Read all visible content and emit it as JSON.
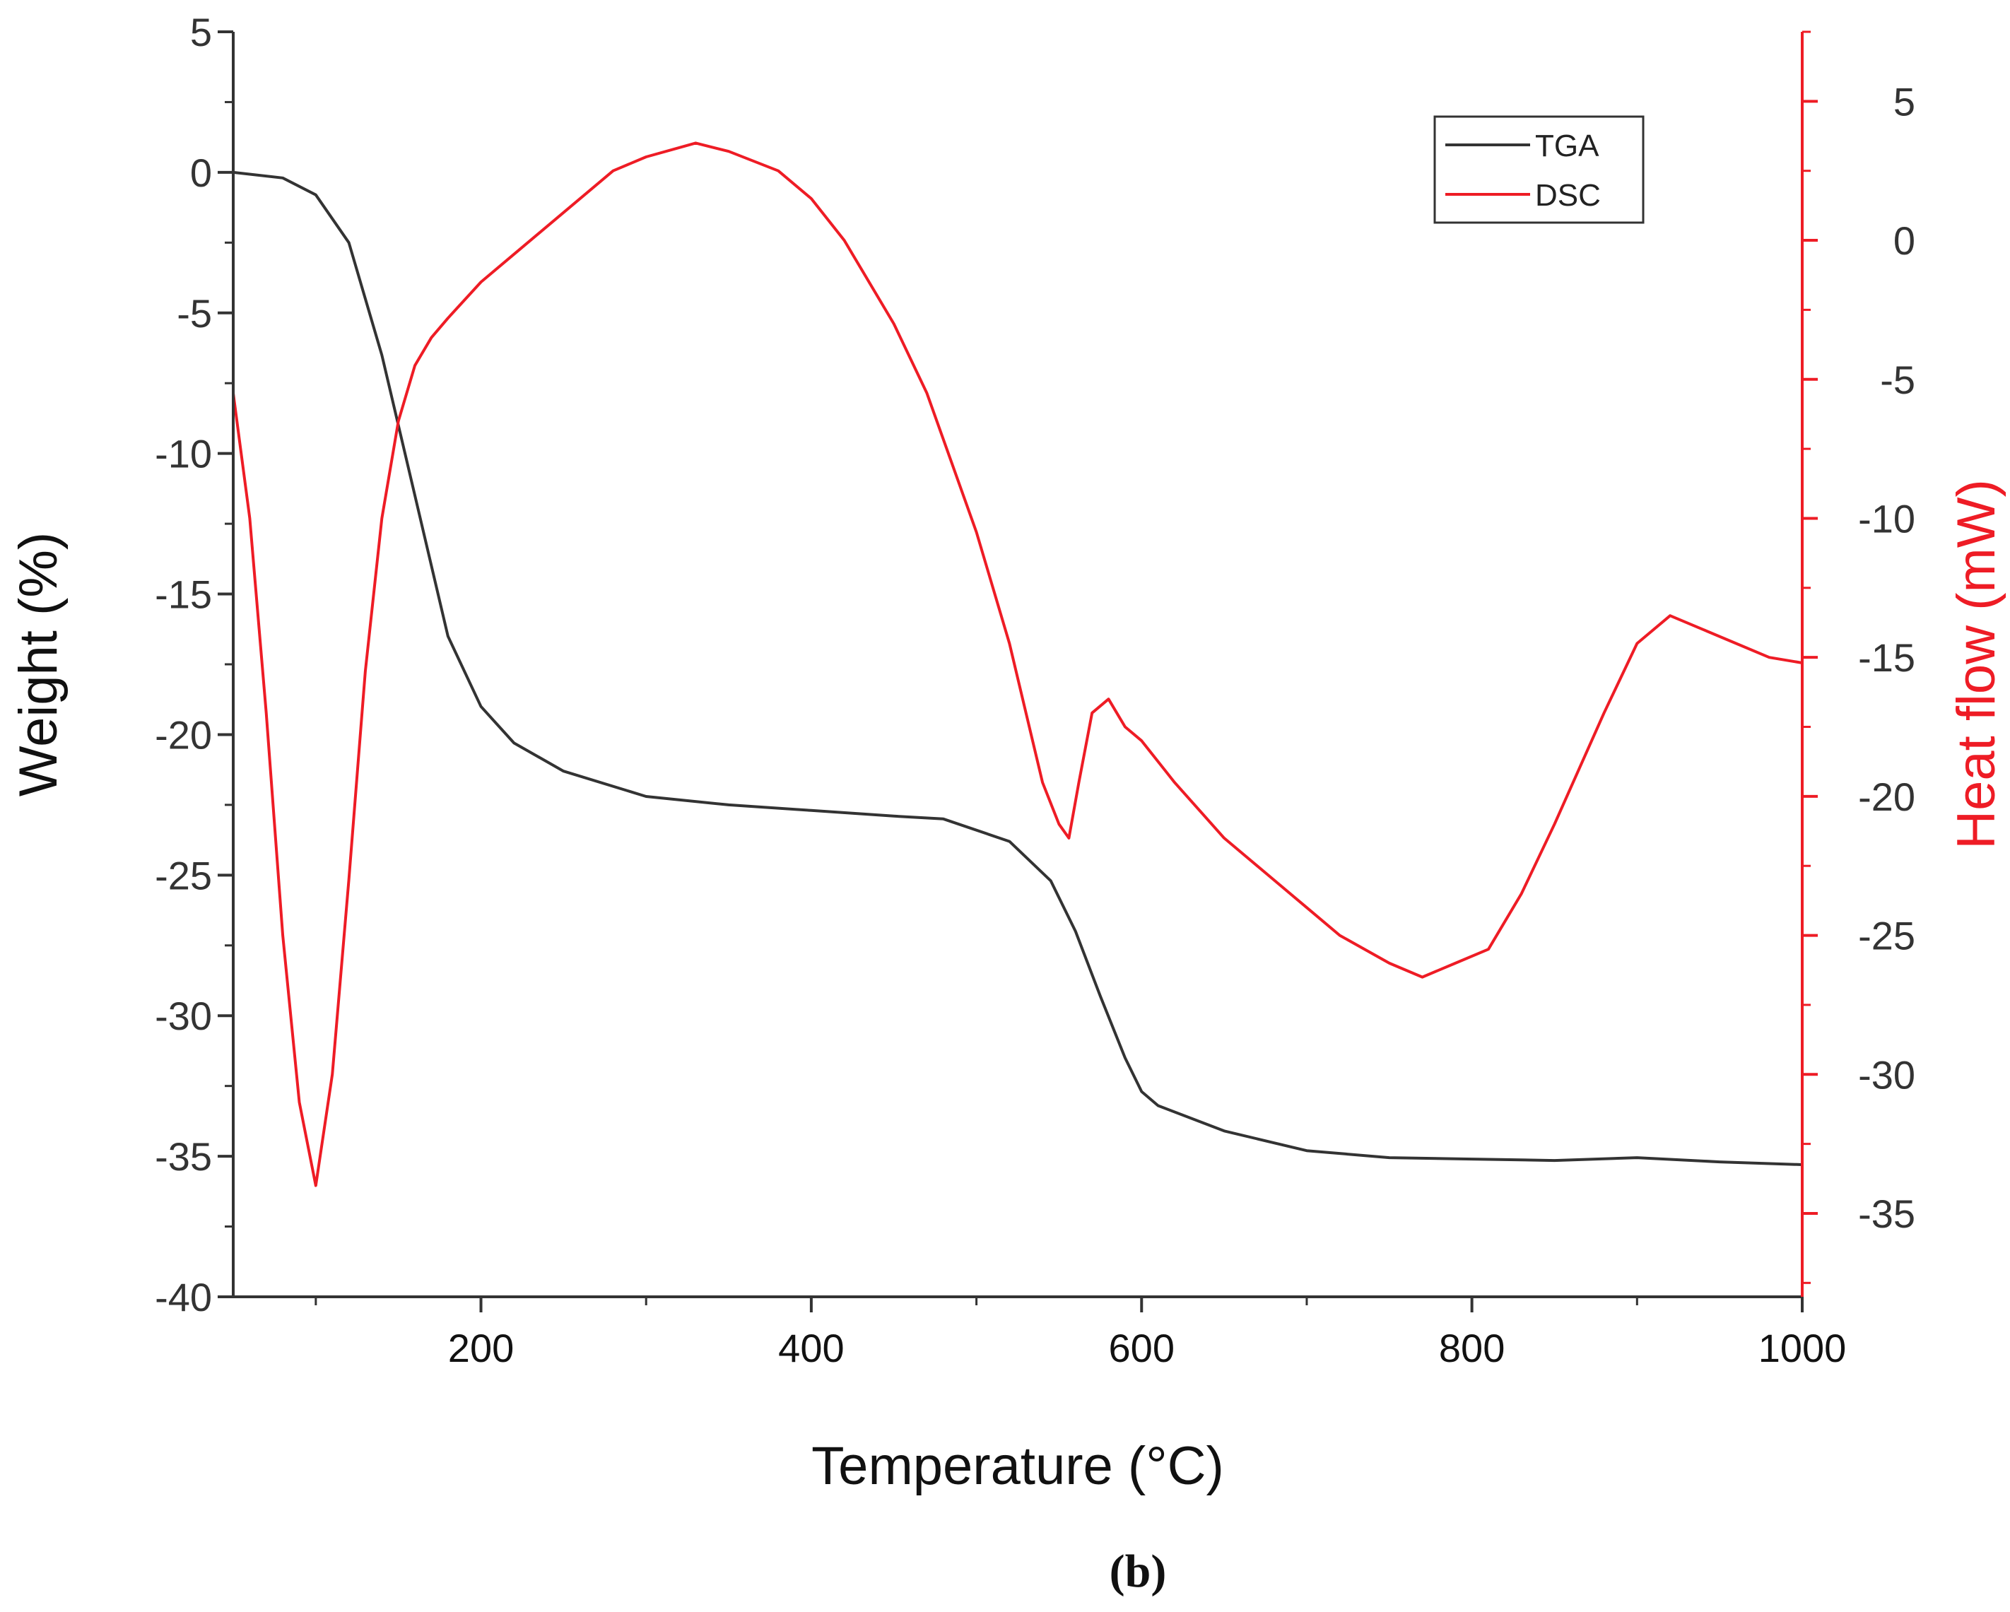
{
  "chart_data": {
    "type": "line",
    "panel_label": "(b)",
    "xlabel": "Temperature (°C)",
    "xlim": [
      50,
      1000
    ],
    "x_ticks": [
      200,
      400,
      600,
      800,
      1000
    ],
    "y_left": {
      "label": "Weight (%)",
      "lim": [
        -40,
        5
      ],
      "ticks": [
        5,
        0,
        -5,
        -10,
        -15,
        -20,
        -25,
        -30,
        -35,
        -40
      ],
      "color": "#333333"
    },
    "y_right": {
      "label": "Heat flow (mW)",
      "lim": [
        -38,
        7.5
      ],
      "ticks": [
        5,
        0,
        -5,
        -10,
        -15,
        -20,
        -25,
        -30,
        -35
      ],
      "color": "#ee1c25"
    },
    "legend": {
      "position": "top-right",
      "entries": [
        "TGA",
        "DSC"
      ]
    },
    "series": [
      {
        "name": "TGA",
        "axis": "left",
        "color": "#333333",
        "x": [
          50,
          80,
          100,
          120,
          140,
          160,
          180,
          200,
          220,
          250,
          300,
          350,
          400,
          450,
          480,
          520,
          545,
          560,
          575,
          590,
          600,
          610,
          650,
          700,
          750,
          800,
          850,
          900,
          950,
          1000
        ],
        "y": [
          0,
          -0.2,
          -0.8,
          -2.5,
          -6.5,
          -11.5,
          -16.5,
          -19,
          -20.3,
          -21.3,
          -22.2,
          -22.5,
          -22.7,
          -22.9,
          -23,
          -23.8,
          -25.2,
          -27,
          -29.3,
          -31.5,
          -32.7,
          -33.2,
          -34.1,
          -34.8,
          -35.05,
          -35.1,
          -35.15,
          -35.05,
          -35.2,
          -35.3
        ]
      },
      {
        "name": "DSC",
        "axis": "right",
        "color": "#ee1c25",
        "x": [
          50,
          60,
          70,
          80,
          90,
          100,
          110,
          120,
          130,
          140,
          150,
          160,
          170,
          180,
          200,
          220,
          250,
          280,
          300,
          330,
          350,
          380,
          400,
          420,
          450,
          470,
          500,
          520,
          540,
          550,
          556,
          562,
          570,
          580,
          590,
          600,
          620,
          650,
          680,
          700,
          720,
          750,
          770,
          790,
          810,
          830,
          850,
          880,
          900,
          920,
          940,
          960,
          980,
          1000
        ],
        "y": [
          -5.5,
          -10,
          -17,
          -25,
          -31,
          -34,
          -30,
          -23,
          -15.5,
          -10,
          -6.5,
          -4.5,
          -3.5,
          -2.8,
          -1.5,
          -0.5,
          1,
          2.5,
          3,
          3.5,
          3.2,
          2.5,
          1.5,
          0,
          -3,
          -5.5,
          -10.5,
          -14.5,
          -19.5,
          -21,
          -21.5,
          -19.5,
          -17,
          -16.5,
          -17.5,
          -18,
          -19.5,
          -21.5,
          -23,
          -24,
          -25,
          -26,
          -26.5,
          -26,
          -25.5,
          -23.5,
          -21,
          -17,
          -14.5,
          -13.5,
          -14,
          -14.5,
          -15,
          -15.2
        ]
      }
    ]
  }
}
